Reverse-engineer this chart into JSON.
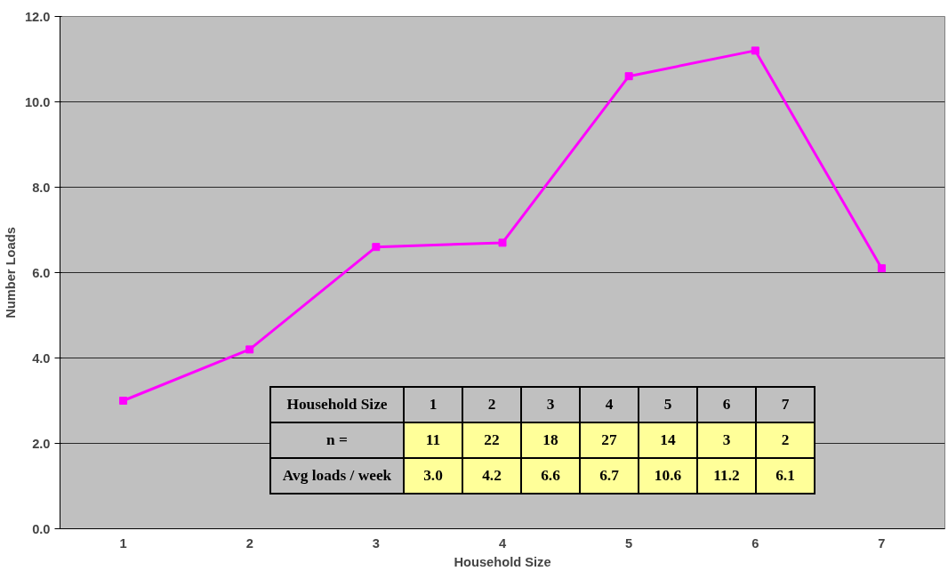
{
  "chart_data": {
    "type": "line",
    "xlabel": "Household Size",
    "ylabel": "Number Loads",
    "categories": [
      "1",
      "2",
      "3",
      "4",
      "5",
      "6",
      "7"
    ],
    "series": [
      {
        "color": "#ff00ff",
        "values": [
          3.0,
          4.2,
          6.6,
          6.7,
          10.6,
          11.2,
          6.1
        ]
      }
    ],
    "ylim": [
      0,
      12
    ],
    "yticks": [
      {
        "value": 0,
        "label": "0.0"
      },
      {
        "value": 2,
        "label": "2.0"
      },
      {
        "value": 4,
        "label": "4.0"
      },
      {
        "value": 6,
        "label": "6.0"
      },
      {
        "value": 8,
        "label": "8.0"
      },
      {
        "value": 10,
        "label": "10.0"
      },
      {
        "value": 12,
        "label": "12.0"
      }
    ],
    "grid": "y",
    "marker": "square",
    "line_style": "solid",
    "annotations": [
      "Household Size",
      "1",
      "2",
      "3",
      "4",
      "5",
      "6",
      "7",
      "n =",
      "11",
      "22",
      "18",
      "27",
      "14",
      "3",
      "2",
      "Avg loads / week",
      "3.0",
      "4.2",
      "6.6",
      "6.7",
      "10.6",
      "11.2",
      "6.1"
    ]
  }
}
